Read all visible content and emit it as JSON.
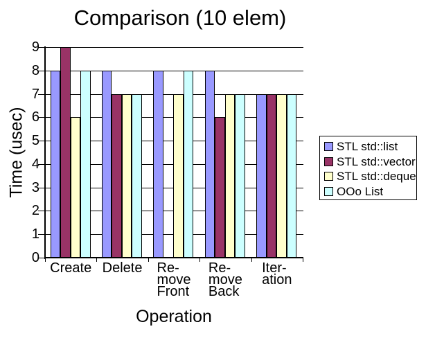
{
  "chart_data": {
    "type": "bar",
    "title": "Comparison (10 elem)",
    "xlabel": "Operation",
    "ylabel": "Time (usec)",
    "categories": [
      "Create",
      "Delete",
      "Re-\nmove\nFront",
      "Re-\nmove\nBack",
      "Iter-\nation"
    ],
    "series": [
      {
        "name": "STL std::list",
        "color": "#9999FF",
        "values": [
          8,
          8,
          8,
          8,
          7
        ]
      },
      {
        "name": "STL std::vector",
        "color": "#993366",
        "values": [
          9,
          7,
          0,
          6,
          7
        ]
      },
      {
        "name": "STL std::deque",
        "color": "#FFFFCC",
        "values": [
          6,
          7,
          7,
          7,
          7
        ]
      },
      {
        "name": "OOo List",
        "color": "#CCFFFF",
        "values": [
          8,
          7,
          8,
          7,
          7
        ]
      }
    ],
    "ylim": [
      0,
      9
    ],
    "yticks": [
      0,
      1,
      2,
      3,
      4,
      5,
      6,
      7,
      8,
      9
    ],
    "grid": "horizontal",
    "legend_position": "right",
    "bar_outline_color": "#000000",
    "axis_color": "#000000",
    "background_color": "#FFFFFF",
    "text_color": "#000000"
  }
}
